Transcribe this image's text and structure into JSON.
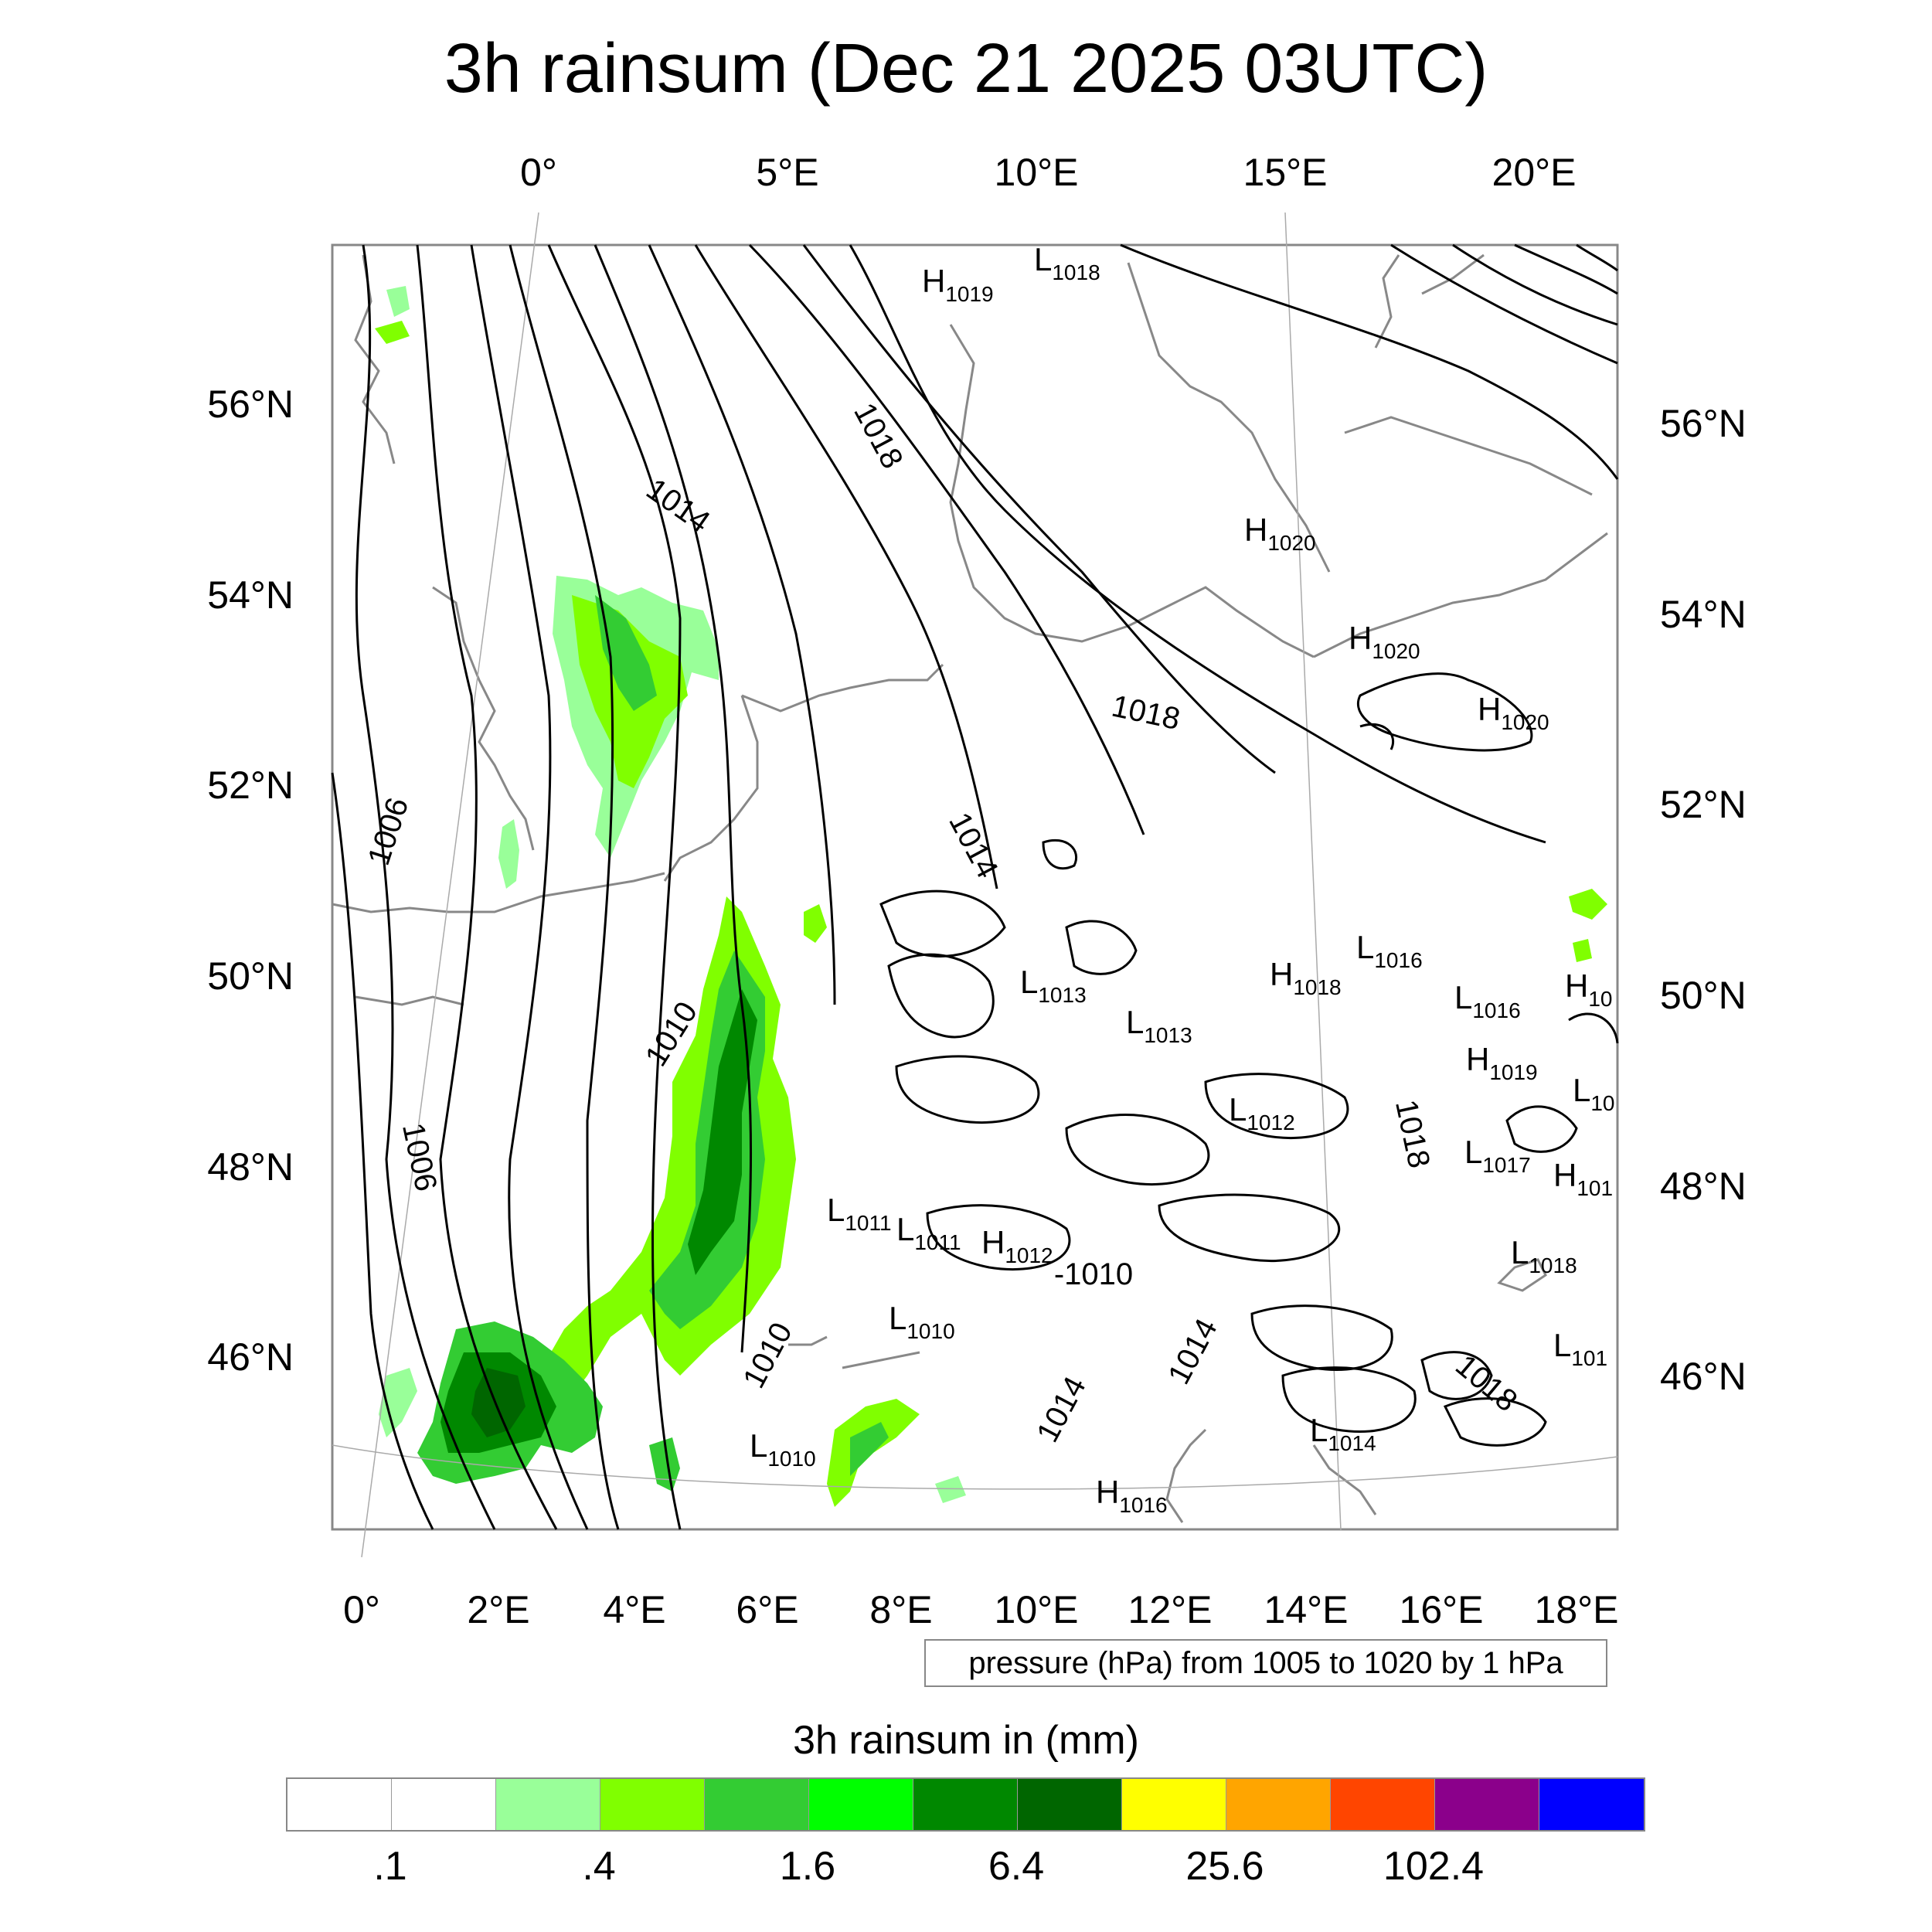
{
  "title": "3h rainsum (Dec 21 2025 03UTC)",
  "top_lon_labels": [
    "0°",
    "5°E",
    "10°E",
    "15°E",
    "20°E"
  ],
  "bottom_lon_labels": [
    "0°",
    "2°E",
    "4°E",
    "6°E",
    "8°E",
    "10°E",
    "12°E",
    "14°E",
    "16°E",
    "18°E"
  ],
  "left_lat_labels": [
    "56°N",
    "54°N",
    "52°N",
    "50°N",
    "48°N",
    "46°N"
  ],
  "right_lat_labels": [
    "56°N",
    "54°N",
    "52°N",
    "50°N",
    "48°N",
    "46°N"
  ],
  "pressure_note": "pressure (hPa) from 1005 to 1020 by 1 hPa",
  "colorbar": {
    "title": "3h rainsum in (mm)",
    "colors": [
      "#ffffff",
      "#ffffff",
      "#99ff99",
      "#80ff00",
      "#33cc33",
      "#00ff00",
      "#008800",
      "#006600",
      "#ffff00",
      "#ffa500",
      "#ff4500",
      "#8b008b",
      "#0000ff"
    ],
    "tick_labels": [
      ".1",
      ".4",
      "1.6",
      "6.4",
      "25.6",
      "102.4"
    ]
  },
  "isobar_labels": [
    "1006",
    "1006",
    "1010",
    "1010",
    "1014",
    "1014",
    "1014",
    "1014",
    "1018",
    "1018",
    "1018",
    "1018",
    "-1010"
  ],
  "pressure_centers": [
    {
      "type": "H",
      "value": "1019"
    },
    {
      "type": "L",
      "value": "1018"
    },
    {
      "type": "H",
      "value": "1020"
    },
    {
      "type": "H",
      "value": "1020"
    },
    {
      "type": "H",
      "value": "1020"
    },
    {
      "type": "L",
      "value": "1016"
    },
    {
      "type": "H",
      "value": "1018"
    },
    {
      "type": "L",
      "value": "1013"
    },
    {
      "type": "L",
      "value": "1013"
    },
    {
      "type": "L",
      "value": "1016"
    },
    {
      "type": "H",
      "value": "10"
    },
    {
      "type": "H",
      "value": "1019"
    },
    {
      "type": "L",
      "value": "10"
    },
    {
      "type": "L",
      "value": "1012"
    },
    {
      "type": "L",
      "value": "1017"
    },
    {
      "type": "H",
      "value": "101"
    },
    {
      "type": "L",
      "value": "1011"
    },
    {
      "type": "L",
      "value": "1011"
    },
    {
      "type": "H",
      "value": "1012"
    },
    {
      "type": "L",
      "value": "1018"
    },
    {
      "type": "L",
      "value": "1010"
    },
    {
      "type": "L",
      "value": "101"
    },
    {
      "type": "L",
      "value": "1014"
    },
    {
      "type": "L",
      "value": "1010"
    },
    {
      "type": "H",
      "value": "1016"
    }
  ]
}
